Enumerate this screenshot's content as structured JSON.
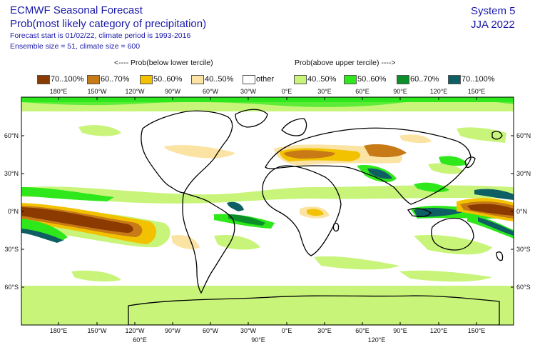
{
  "header": {
    "title": "ECMWF Seasonal Forecast",
    "product": "Prob(most likely category of precipitation)",
    "forecast_info": "Forecast start is 01/02/22, climate period is 1993-2016",
    "ensemble_info": "Ensemble size = 51, climate size = 600",
    "system": "System 5",
    "season": "JJA 2022"
  },
  "legend": {
    "below_header": "<---- Prob(below lower tercile)",
    "above_header": "Prob(above upper tercile) ---->",
    "items": [
      {
        "label": "70..100%",
        "color": "#8b3a00"
      },
      {
        "label": "60..70%",
        "color": "#c77a16"
      },
      {
        "label": "50..60%",
        "color": "#f2c200"
      },
      {
        "label": "40..50%",
        "color": "#fbe3a4"
      },
      {
        "label": "other",
        "color": "#ffffff"
      },
      {
        "label": "40..50%",
        "color": "#c8f47a"
      },
      {
        "label": "50..60%",
        "color": "#2ee81c"
      },
      {
        "label": "60..70%",
        "color": "#0c8f2a"
      },
      {
        "label": "70..100%",
        "color": "#0d5f64"
      }
    ]
  },
  "axes": {
    "top_lon_labels": [
      "180°E",
      "150°W",
      "120°W",
      "90°W",
      "60°W",
      "30°W",
      "0°E",
      "30°E",
      "60°E",
      "90°E",
      "120°E",
      "150°E"
    ],
    "bottom_lon_labels": [
      "180°E",
      "150°W",
      "120°W",
      "90°W",
      "60°W",
      "30°W",
      "0°E",
      "30°E",
      "60°E",
      "90°E",
      "120°E",
      "150°E"
    ],
    "bottom_extra_labels": [
      "60°E",
      "90°E",
      "120°E"
    ],
    "lat_labels": [
      "60°N",
      "30°N",
      "0°N",
      "30°S",
      "60°S"
    ]
  }
}
